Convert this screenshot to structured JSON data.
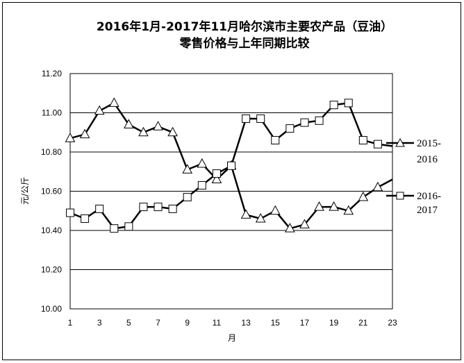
{
  "chart_data": {
    "type": "line",
    "title_line1": "2016年1月-2017年11月哈尔滨市主要农产品（豆油）",
    "title_line2": "零售价格与上年同期比较",
    "xlabel": "月",
    "ylabel": "元/公斤",
    "ylim": [
      10.0,
      11.2
    ],
    "y_ticks": [
      "10.00",
      "10.20",
      "10.40",
      "10.60",
      "10.80",
      "11.00",
      "11.20"
    ],
    "x_ticks": [
      "1",
      "3",
      "5",
      "7",
      "9",
      "11",
      "13",
      "15",
      "17",
      "19",
      "21",
      "23"
    ],
    "xlim": [
      1,
      23
    ],
    "grid": "horizontal",
    "legend_position": "right",
    "series": [
      {
        "name_line1": "2015-",
        "name_line2": "2016",
        "marker": "triangle",
        "x": [
          1,
          2,
          3,
          4,
          5,
          6,
          7,
          8,
          9,
          10,
          11,
          12,
          13,
          14,
          15,
          16,
          17,
          18,
          19,
          20,
          21,
          22,
          23
        ],
        "values": [
          10.87,
          10.89,
          11.01,
          11.05,
          10.94,
          10.9,
          10.93,
          10.9,
          10.71,
          10.74,
          10.66,
          10.73,
          10.48,
          10.46,
          10.5,
          10.41,
          10.43,
          10.52,
          10.52,
          10.5,
          10.57,
          10.62,
          10.66
        ],
        "marker_count": 22
      },
      {
        "name_line1": "2016-",
        "name_line2": "2017",
        "marker": "square",
        "x": [
          1,
          2,
          3,
          4,
          5,
          6,
          7,
          8,
          9,
          10,
          11,
          12,
          13,
          14,
          15,
          16,
          17,
          18,
          19,
          20,
          21,
          22,
          23
        ],
        "values": [
          10.49,
          10.46,
          10.51,
          10.41,
          10.42,
          10.52,
          10.52,
          10.51,
          10.57,
          10.63,
          10.69,
          10.73,
          10.97,
          10.97,
          10.86,
          10.92,
          10.95,
          10.96,
          11.04,
          11.05,
          10.86,
          10.84,
          10.83
        ],
        "marker_count": 22
      }
    ]
  }
}
